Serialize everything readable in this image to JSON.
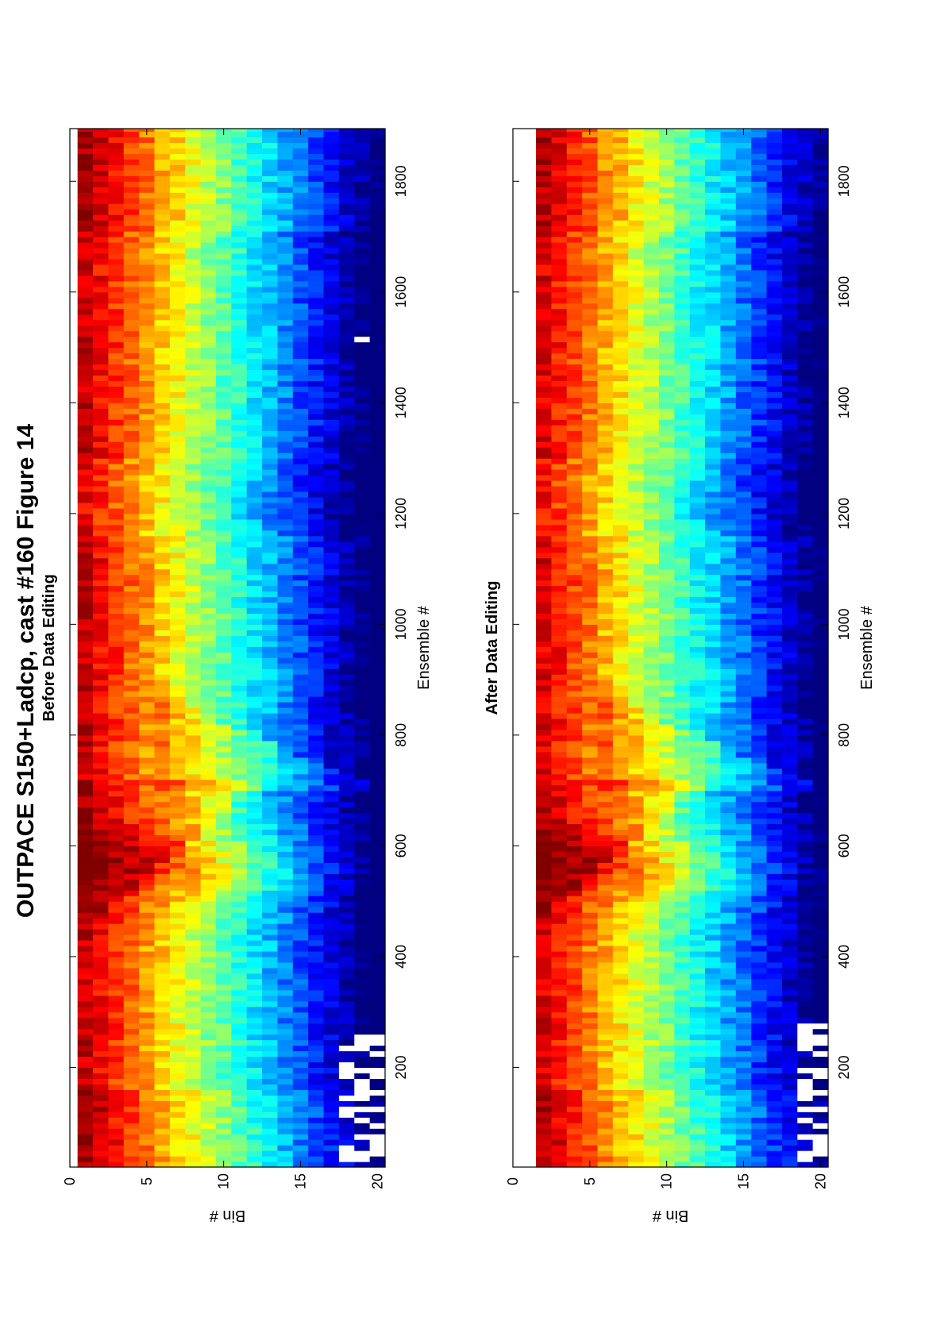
{
  "figure": {
    "title": "OUTPACE S150+Ladcp, cast #160  Figure 14"
  },
  "chart_data": [
    {
      "type": "heatmap",
      "title": "Before Data Editing",
      "xlabel": "Ensemble #",
      "ylabel": "Bin #",
      "xlim": [
        20,
        1895
      ],
      "ylim": [
        0,
        20.5
      ],
      "xticks": [
        200,
        400,
        600,
        800,
        1000,
        1200,
        1400,
        1600,
        1800
      ],
      "yticks": [
        0,
        5,
        10,
        15,
        20
      ],
      "bins": [
        1,
        20
      ],
      "colormap": "jet",
      "has_blank_first_bin": false,
      "gap_regions": [
        {
          "x": [
            25,
            250
          ],
          "bins": [
            18,
            20
          ]
        },
        {
          "x": [
            1510,
            1520
          ],
          "bins": [
            19,
            19
          ]
        }
      ]
    },
    {
      "type": "heatmap",
      "title": "After Data Editing",
      "xlabel": "Ensemble #",
      "ylabel": "Bin #",
      "xlim": [
        20,
        1895
      ],
      "ylim": [
        0,
        20.5
      ],
      "xticks": [
        200,
        400,
        600,
        800,
        1000,
        1200,
        1400,
        1600,
        1800
      ],
      "yticks": [
        0,
        5,
        10,
        15,
        20
      ],
      "bins": [
        2,
        20
      ],
      "colormap": "jet",
      "has_blank_first_bin": true,
      "gap_regions": [
        {
          "x": [
            25,
            270
          ],
          "bins": [
            19,
            20
          ]
        }
      ]
    }
  ]
}
